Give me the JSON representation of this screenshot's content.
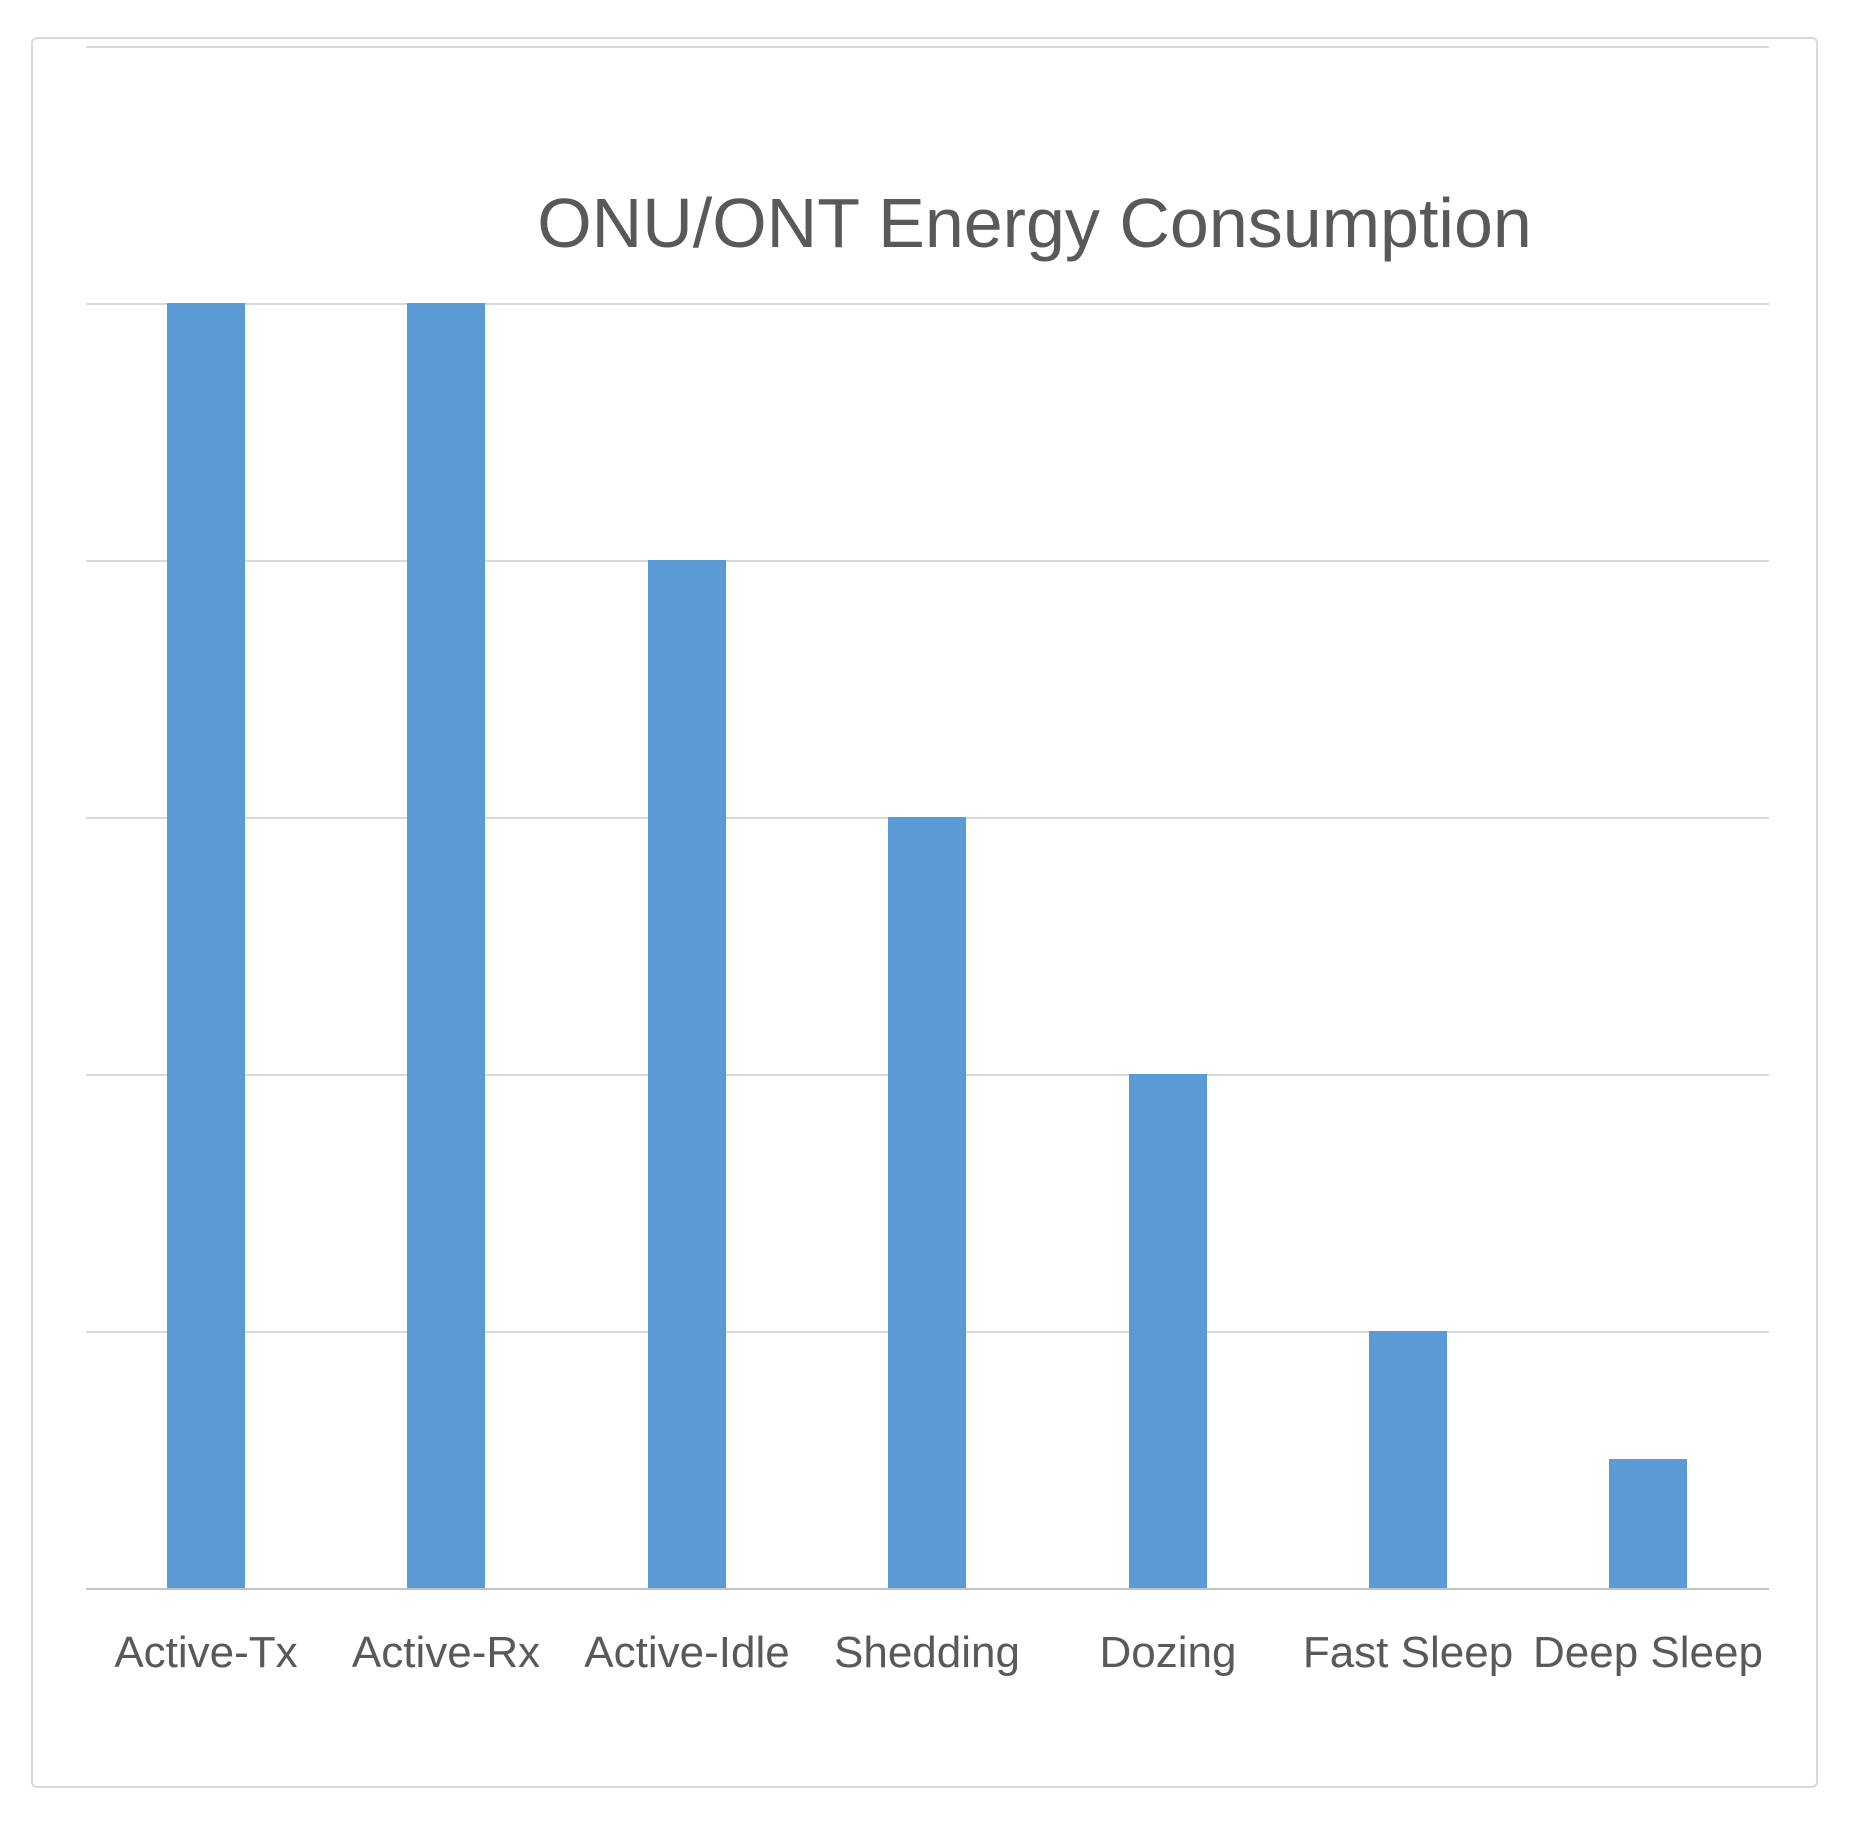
{
  "chart_data": {
    "type": "bar",
    "title": "ONU/ONT Energy Consumption",
    "categories": [
      "Active-Tx",
      "Active-Rx",
      "Active-Idle",
      "Shedding",
      "Dozing",
      "Fast Sleep",
      "Deep Sleep"
    ],
    "values": [
      5,
      5,
      4,
      3,
      2,
      1,
      0.5
    ],
    "value_scale_note": "y-axis has no tick labels; values measured in gridline units (tallest bars reach the 5th gridline, Deep Sleep reaches half the first interval)",
    "xlabel": "",
    "ylabel": "",
    "ylim": [
      0,
      6
    ],
    "grid": "horizontal gridlines every 1 unit, 6 gridlines above baseline",
    "legend": "none",
    "series_count": 1,
    "bar_color": "#5b9bd5",
    "text_color": "#595959",
    "gridline_color": "#d9d9d9",
    "background_color": "#ffffff"
  }
}
